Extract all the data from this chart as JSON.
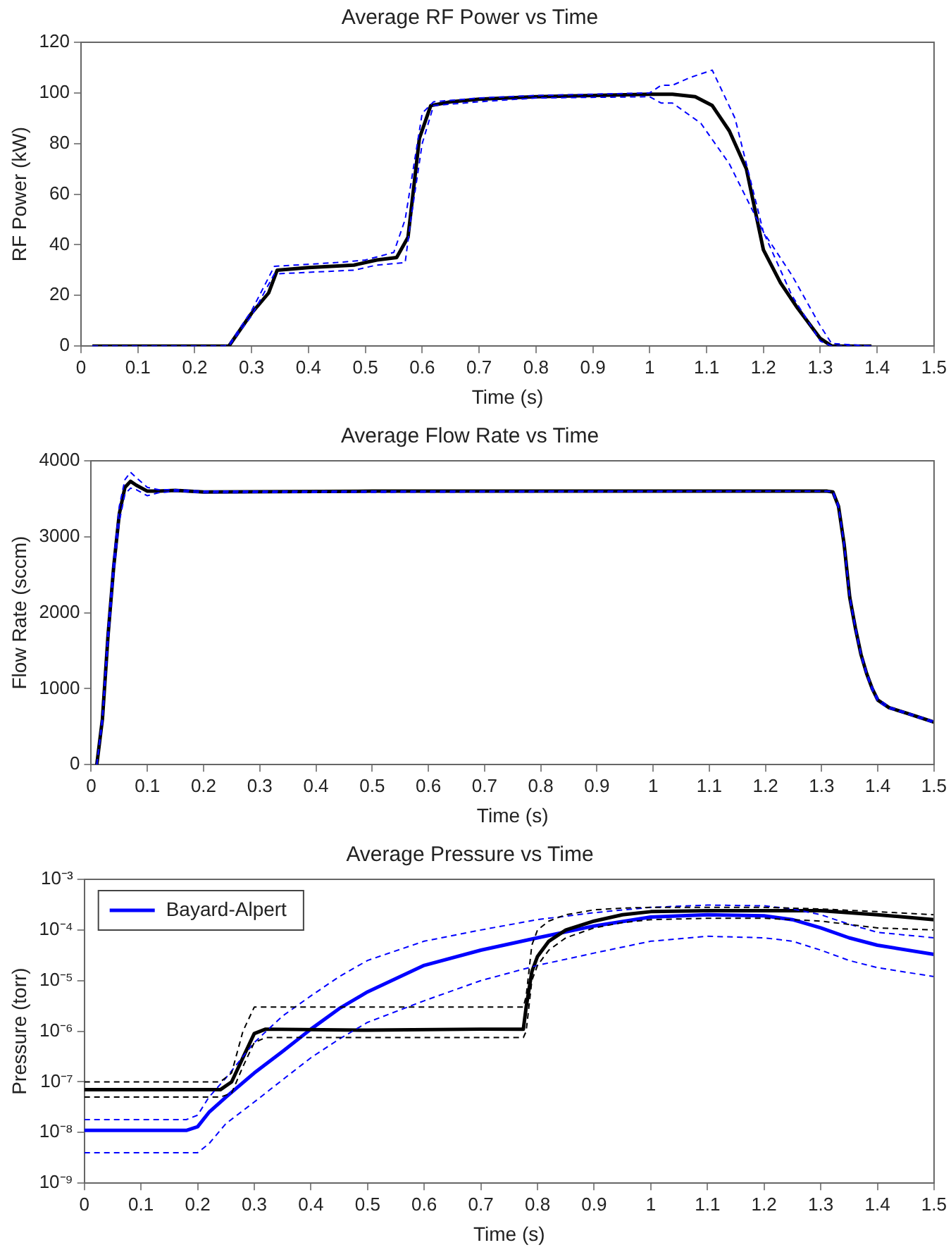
{
  "chart_data": [
    {
      "type": "line",
      "title": "Average RF Power vs Time",
      "xlabel": "Time (s)",
      "ylabel": "RF Power (kW)",
      "xlim": [
        0,
        1.5
      ],
      "xticks": [
        0,
        0.1,
        0.2,
        0.3,
        0.4,
        0.5,
        0.6,
        0.7,
        0.8,
        0.9,
        1,
        1.1,
        1.2,
        1.3,
        1.4,
        1.5
      ],
      "ylim": [
        0,
        120
      ],
      "yticks": [
        0,
        20,
        40,
        60,
        80,
        100,
        120
      ],
      "grid": false,
      "legend": false,
      "marker": "none",
      "series": [
        {
          "color": "#0000ff",
          "line_style": "dashed",
          "x": [
            0.02,
            0.25,
            0.26,
            0.3,
            0.34,
            0.45,
            0.5,
            0.55,
            0.57,
            0.6,
            0.62,
            0.7,
            0.8,
            0.9,
            1.0,
            1.02,
            1.04,
            1.07,
            1.11,
            1.15,
            1.2,
            1.25,
            1.3,
            1.32,
            1.39
          ],
          "values": [
            0,
            0,
            0.5,
            14,
            31.5,
            33,
            34,
            37,
            50,
            92,
            96.5,
            98,
            99,
            99.5,
            100,
            103,
            103,
            106,
            109,
            90,
            45,
            28,
            8,
            1,
            0
          ]
        },
        {
          "color": "#0000ff",
          "line_style": "dashed",
          "x": [
            0.02,
            0.26,
            0.3,
            0.34,
            0.48,
            0.52,
            0.57,
            0.58,
            0.6,
            0.62,
            0.7,
            0.8,
            1.0,
            1.02,
            1.04,
            1.09,
            1.14,
            1.2,
            1.25,
            1.3,
            1.32,
            1.39
          ],
          "values": [
            0,
            0,
            12,
            28.5,
            30,
            32,
            33,
            50,
            80,
            95,
            96.5,
            98,
            98.5,
            96,
            96,
            88,
            72,
            45,
            20,
            2,
            0,
            0
          ]
        },
        {
          "color": "#000000",
          "line_style": "solid",
          "x": [
            0.02,
            0.25,
            0.26,
            0.3,
            0.33,
            0.345,
            0.4,
            0.48,
            0.52,
            0.555,
            0.575,
            0.595,
            0.615,
            0.65,
            0.7,
            0.8,
            0.9,
            1.0,
            1.04,
            1.08,
            1.11,
            1.14,
            1.17,
            1.2,
            1.23,
            1.26,
            1.3,
            1.32,
            1.39
          ],
          "values": [
            0,
            0,
            0,
            13,
            21,
            30,
            31,
            32,
            34,
            35,
            43,
            82,
            95,
            96.5,
            97.5,
            98.5,
            99,
            99.5,
            99.5,
            98.5,
            95,
            85,
            70,
            38,
            25,
            15,
            3,
            0,
            0
          ]
        }
      ]
    },
    {
      "type": "line",
      "title": "Average Flow Rate vs Time",
      "xlabel": "Time (s)",
      "ylabel": "Flow Rate (sccm)",
      "xlim": [
        0,
        1.5
      ],
      "xticks": [
        0,
        0.1,
        0.2,
        0.3,
        0.4,
        0.5,
        0.6,
        0.7,
        0.8,
        0.9,
        1,
        1.1,
        1.2,
        1.3,
        1.4,
        1.5
      ],
      "ylim": [
        0,
        4000
      ],
      "yticks": [
        0,
        1000,
        2000,
        3000,
        4000
      ],
      "grid": false,
      "legend": false,
      "marker": "none",
      "series": [
        {
          "color": "#0000ff",
          "line_style": "dashed",
          "x": [
            0.01,
            0.02,
            0.03,
            0.04,
            0.05,
            0.06,
            0.07,
            0.08,
            0.1,
            0.12,
            0.15,
            0.2,
            1.31,
            1.32,
            1.33,
            1.34,
            1.35,
            1.36,
            1.37,
            1.38,
            1.39,
            1.4,
            1.42,
            1.45,
            1.5
          ],
          "values": [
            0,
            650,
            1800,
            2700,
            3400,
            3750,
            3850,
            3780,
            3650,
            3620,
            3620,
            3600,
            3600,
            3600,
            3420,
            2920,
            2220,
            1820,
            1470,
            1220,
            1020,
            870,
            760,
            690,
            570
          ]
        },
        {
          "color": "#0000ff",
          "line_style": "dashed",
          "x": [
            0.01,
            0.02,
            0.03,
            0.04,
            0.05,
            0.06,
            0.07,
            0.08,
            0.1,
            0.12,
            0.15,
            0.2,
            1.31,
            1.32,
            1.33,
            1.34,
            1.35,
            1.36,
            1.37,
            1.38,
            1.39,
            1.4,
            1.42,
            1.45,
            1.5
          ],
          "values": [
            0,
            550,
            1600,
            2500,
            3200,
            3560,
            3640,
            3620,
            3540,
            3580,
            3600,
            3580,
            3600,
            3580,
            3380,
            2880,
            2180,
            1780,
            1430,
            1180,
            980,
            830,
            740,
            670,
            550
          ]
        },
        {
          "color": "#000000",
          "line_style": "solid",
          "x": [
            0.01,
            0.02,
            0.03,
            0.04,
            0.05,
            0.06,
            0.07,
            0.08,
            0.1,
            0.12,
            0.15,
            0.2,
            0.5,
            1.0,
            1.31,
            1.32,
            1.33,
            1.34,
            1.35,
            1.36,
            1.37,
            1.38,
            1.39,
            1.4,
            1.42,
            1.45,
            1.5
          ],
          "values": [
            0,
            600,
            1700,
            2600,
            3300,
            3650,
            3730,
            3680,
            3600,
            3600,
            3610,
            3590,
            3600,
            3600,
            3600,
            3590,
            3400,
            2900,
            2200,
            1800,
            1450,
            1200,
            1000,
            850,
            750,
            680,
            560
          ]
        }
      ]
    },
    {
      "type": "line",
      "title": "Average Pressure vs Time",
      "xlabel": "Time (s)",
      "ylabel": "Pressure (torr)",
      "xlim": [
        0,
        1.5
      ],
      "xticks": [
        0,
        0.1,
        0.2,
        0.3,
        0.4,
        0.5,
        0.6,
        0.7,
        0.8,
        0.9,
        1,
        1.1,
        1.2,
        1.3,
        1.4,
        1.5
      ],
      "ylim": [
        1e-09,
        0.001
      ],
      "log": "y",
      "yticks": [
        {
          "value": 1e-09,
          "label": "10⁻⁹"
        },
        {
          "value": 1e-08,
          "label": "10⁻⁸"
        },
        {
          "value": 1e-07,
          "label": "10⁻⁷"
        },
        {
          "value": 1e-06,
          "label": "10⁻⁶"
        },
        {
          "value": 1e-05,
          "label": "10⁻⁵"
        },
        {
          "value": 0.0001,
          "label": "10⁻⁴"
        },
        {
          "value": 0.001,
          "label": "10⁻³"
        }
      ],
      "grid": false,
      "legend": "top left",
      "marker": "none",
      "series": [
        {
          "color": "#000000",
          "line_style": "dashed",
          "x": [
            0,
            0.24,
            0.26,
            0.28,
            0.3,
            0.32,
            0.5,
            0.7,
            0.775,
            0.78,
            0.79,
            0.8,
            0.82,
            0.85,
            0.9,
            0.95,
            1.0,
            1.1,
            1.2,
            1.3,
            1.4,
            1.5
          ],
          "values": [
            1e-07,
            1e-07,
            1.5e-07,
            1e-06,
            3e-06,
            3e-06,
            3e-06,
            3e-06,
            3e-06,
            5e-06,
            5e-05,
            0.0001,
            0.00015,
            0.0002,
            0.00025,
            0.00027,
            0.00028,
            0.00028,
            0.00028,
            0.00026,
            0.00023,
            0.0002
          ]
        },
        {
          "color": "#000000",
          "line_style": "dashed",
          "x": [
            0,
            0.24,
            0.26,
            0.28,
            0.3,
            0.32,
            0.5,
            0.7,
            0.775,
            0.78,
            0.79,
            0.8,
            0.82,
            0.85,
            0.9,
            0.95,
            1.0,
            1.1,
            1.2,
            1.3,
            1.4,
            1.5
          ],
          "values": [
            5e-08,
            5e-08,
            6e-08,
            2e-07,
            6e-07,
            7.5e-07,
            7.5e-07,
            7.5e-07,
            7.5e-07,
            1e-06,
            1e-05,
            2e-05,
            4e-05,
            7e-05,
            0.00011,
            0.00014,
            0.00016,
            0.00017,
            0.00017,
            0.00015,
            0.00011,
            0.0001
          ]
        },
        {
          "color": "#0000ff",
          "line_style": "dashed",
          "x": [
            0,
            0.18,
            0.2,
            0.22,
            0.25,
            0.3,
            0.35,
            0.4,
            0.45,
            0.5,
            0.6,
            0.7,
            0.8,
            0.9,
            1.0,
            1.1,
            1.2,
            1.25,
            1.3,
            1.35,
            1.4,
            1.5
          ],
          "values": [
            1.8e-08,
            1.8e-08,
            2.2e-08,
            5e-08,
            1.2e-07,
            6e-07,
            2e-06,
            5e-06,
            1.2e-05,
            2.5e-05,
            6e-05,
            0.0001,
            0.00016,
            0.00022,
            0.00028,
            0.00031,
            0.0003,
            0.00026,
            0.0002,
            0.00013,
            9e-05,
            7e-05
          ]
        },
        {
          "color": "#0000ff",
          "line_style": "dashed",
          "x": [
            0,
            0.18,
            0.2,
            0.22,
            0.25,
            0.3,
            0.35,
            0.4,
            0.45,
            0.5,
            0.6,
            0.7,
            0.8,
            0.9,
            1.0,
            1.1,
            1.2,
            1.25,
            1.3,
            1.35,
            1.4,
            1.5
          ],
          "values": [
            4e-09,
            4e-09,
            4e-09,
            6e-09,
            1.5e-08,
            4e-08,
            1.1e-07,
            3e-07,
            7e-07,
            1.5e-06,
            4e-06,
            1e-05,
            2e-05,
            3.5e-05,
            6e-05,
            7.5e-05,
            7e-05,
            6e-05,
            4e-05,
            2.5e-05,
            1.8e-05,
            1.2e-05
          ]
        },
        {
          "color": "#000000",
          "line_style": "solid",
          "x": [
            0,
            0.24,
            0.26,
            0.28,
            0.3,
            0.32,
            0.5,
            0.7,
            0.775,
            0.78,
            0.79,
            0.8,
            0.82,
            0.85,
            0.9,
            0.95,
            1.0,
            1.1,
            1.2,
            1.3,
            1.4,
            1.5
          ],
          "values": [
            7e-08,
            7e-08,
            1e-07,
            3e-07,
            9e-07,
            1.1e-06,
            1.05e-06,
            1.1e-06,
            1.1e-06,
            3e-06,
            1.5e-05,
            3e-05,
            6e-05,
            0.0001,
            0.00015,
            0.0002,
            0.00023,
            0.00024,
            0.00024,
            0.00024,
            0.0002,
            0.00016
          ]
        },
        {
          "name": "Bayard-Alpert",
          "color": "#0000ff",
          "line_style": "solid",
          "x": [
            0,
            0.18,
            0.2,
            0.22,
            0.25,
            0.3,
            0.35,
            0.4,
            0.45,
            0.5,
            0.6,
            0.7,
            0.8,
            0.9,
            1.0,
            1.1,
            1.2,
            1.25,
            1.3,
            1.35,
            1.4,
            1.5
          ],
          "values": [
            1.1e-08,
            1.1e-08,
            1.3e-08,
            2.5e-08,
            5e-08,
            1.5e-07,
            4e-07,
            1.1e-06,
            2.8e-06,
            6e-06,
            2e-05,
            4e-05,
            7e-05,
            0.00012,
            0.00018,
            0.0002,
            0.00019,
            0.00016,
            0.00011,
            7e-05,
            5e-05,
            3.3e-05
          ]
        }
      ]
    }
  ]
}
